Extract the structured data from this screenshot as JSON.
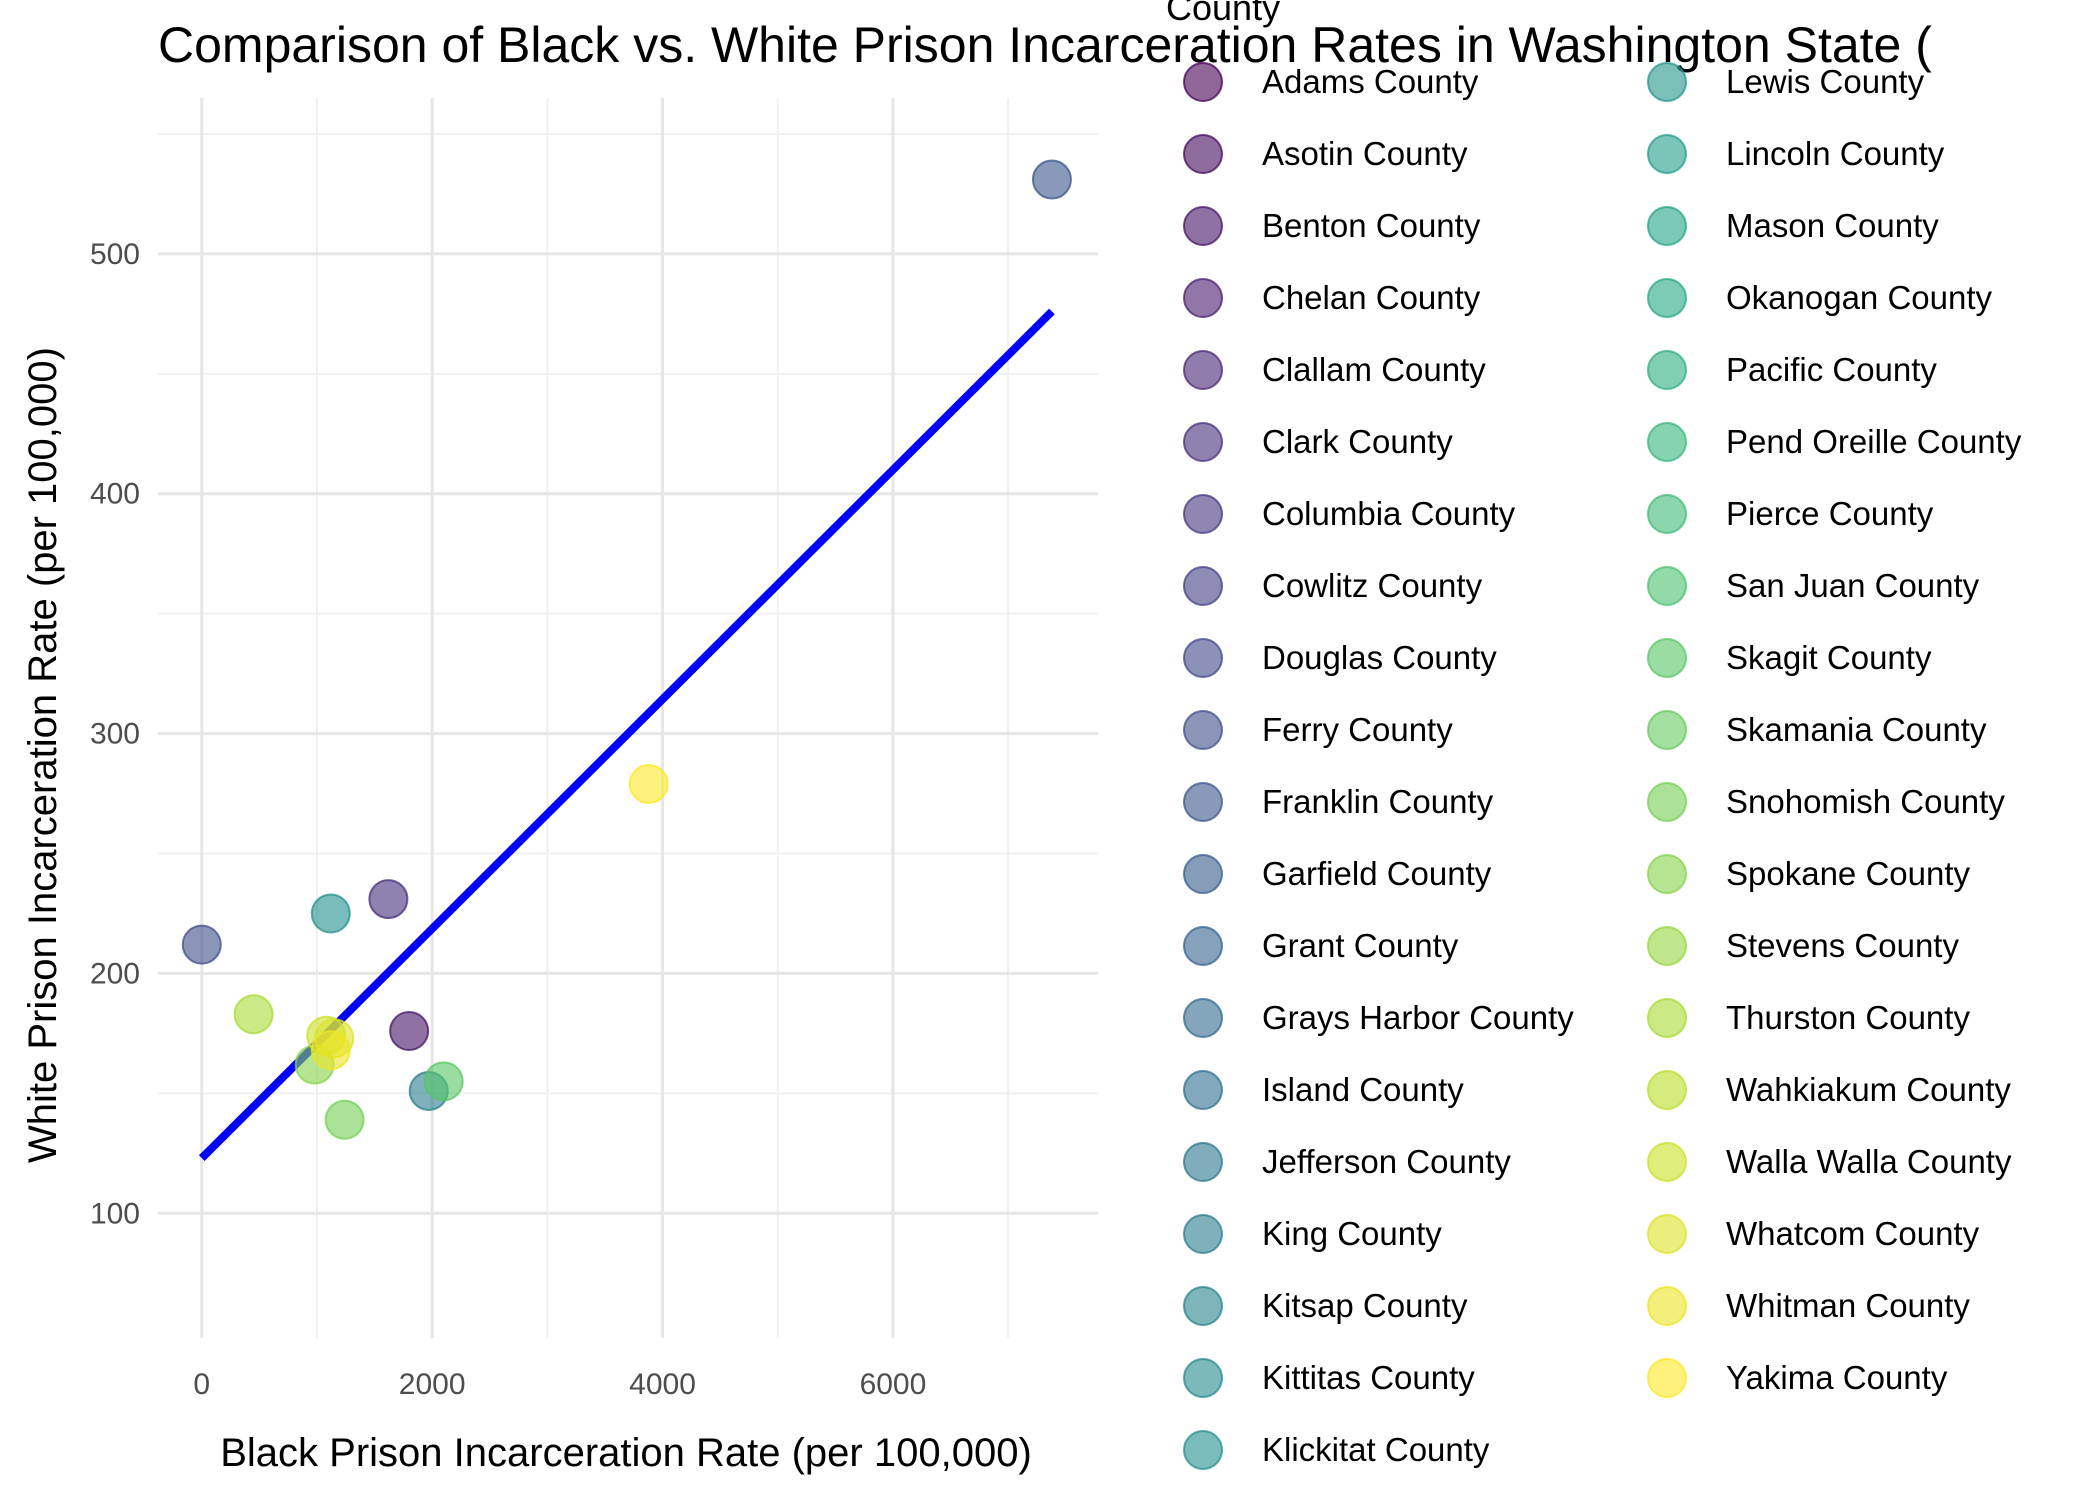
{
  "chart_data": {
    "type": "scatter",
    "title": "Comparison of Black vs. White Prison Incarceration Rates in Washington State (",
    "xlabel": "Black Prison Incarceration Rate (per 100,000)",
    "ylabel": "White Prison Incarceration Rate (per 100,000)",
    "xlim": [
      -380,
      7780
    ],
    "ylim": [
      48,
      565
    ],
    "x_ticks": [
      0,
      2000,
      4000,
      6000
    ],
    "x_tick_labels": [
      "0",
      "2000",
      "4000",
      "6000"
    ],
    "y_ticks": [
      100,
      200,
      300,
      400,
      500
    ],
    "y_tick_labels": [
      "100",
      "200",
      "300",
      "400",
      "500"
    ],
    "grid": true,
    "legend_title": "County",
    "legend_position": "right",
    "legend_columns": 2,
    "palette": [
      "#440154",
      "#482475",
      "#414487",
      "#355f8d",
      "#2a788e",
      "#21908d",
      "#22a884",
      "#43bf71",
      "#7ad151",
      "#bddf26",
      "#fde725"
    ],
    "counties": [
      "Adams County",
      "Asotin County",
      "Benton County",
      "Chelan County",
      "Clallam County",
      "Clark County",
      "Columbia County",
      "Cowlitz County",
      "Douglas County",
      "Ferry County",
      "Franklin County",
      "Garfield County",
      "Grant County",
      "Grays Harbor County",
      "Island County",
      "Jefferson County",
      "King County",
      "Kitsap County",
      "Kittitas County",
      "Klickitat County",
      "Lewis County",
      "Lincoln County",
      "Mason County",
      "Okanogan County",
      "Pacific County",
      "Pend Oreille County",
      "Pierce County",
      "San Juan County",
      "Skagit County",
      "Skamania County",
      "Snohomish County",
      "Spokane County",
      "Stevens County",
      "Thurston County",
      "Wahkiakum County",
      "Walla Walla County",
      "Whatcom County",
      "Whitman County",
      "Yakima County"
    ],
    "points": [
      {
        "county_index": 2,
        "x": 1800,
        "y": 176
      },
      {
        "county_index": 5,
        "x": 1620,
        "y": 231
      },
      {
        "county_index": 9,
        "x": 0,
        "y": 212
      },
      {
        "county_index": 10,
        "x": 7380,
        "y": 531
      },
      {
        "county_index": 16,
        "x": 1970,
        "y": 151
      },
      {
        "county_index": 19,
        "x": 1120,
        "y": 225
      },
      {
        "county_index": 28,
        "x": 2100,
        "y": 155
      },
      {
        "county_index": 30,
        "x": 1240,
        "y": 139
      },
      {
        "county_index": 31,
        "x": 980,
        "y": 162
      },
      {
        "county_index": 33,
        "x": 450,
        "y": 183
      },
      {
        "county_index": 35,
        "x": 1080,
        "y": 174
      },
      {
        "county_index": 36,
        "x": 1150,
        "y": 173
      },
      {
        "county_index": 37,
        "x": 1120,
        "y": 168
      },
      {
        "county_index": 38,
        "x": 3880,
        "y": 279
      }
    ],
    "trend_line": {
      "color": "#0000ff",
      "x": [
        0,
        7380
      ],
      "y": [
        123,
        476
      ]
    }
  }
}
